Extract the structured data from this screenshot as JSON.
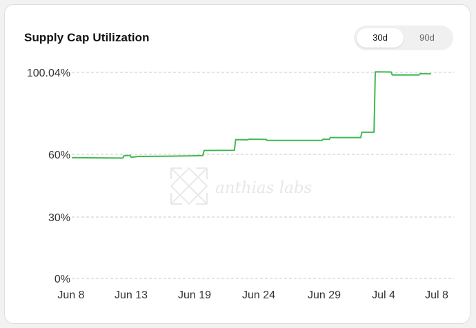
{
  "card": {
    "title": "Supply Cap Utilization"
  },
  "toggle": {
    "options": [
      "30d",
      "90d"
    ],
    "selected": "30d"
  },
  "watermark": {
    "text": "anthias labs"
  },
  "colors": {
    "line": "#3fb950",
    "grid": "#c8c8c8",
    "toggle_bg": "#f0f0f1"
  },
  "chart_data": {
    "type": "line",
    "title": "Supply Cap Utilization",
    "xlabel": "",
    "ylabel": "",
    "x_ticks": [
      "Jun 8",
      "Jun 13",
      "Jun 19",
      "Jun 24",
      "Jun 29",
      "Jul 4",
      "Jul 8"
    ],
    "y_ticks": [
      "0%",
      "30%",
      "60%",
      "100.04%"
    ],
    "ylim": [
      0,
      100.04
    ],
    "xlim": [
      0,
      30
    ],
    "grid": true,
    "series": [
      {
        "points": [
          [
            0,
            58.4
          ],
          [
            4.2,
            58.2
          ],
          [
            4.3,
            59.3
          ],
          [
            4.8,
            59.5
          ],
          [
            4.9,
            58.6
          ],
          [
            5.5,
            59.0
          ],
          [
            7.5,
            59.1
          ],
          [
            10.0,
            59.3
          ],
          [
            10.8,
            59.4
          ],
          [
            10.9,
            61.9
          ],
          [
            13.4,
            62.0
          ],
          [
            13.5,
            67.2
          ],
          [
            14.5,
            67.1
          ],
          [
            14.6,
            67.4
          ],
          [
            16.0,
            67.3
          ],
          [
            16.1,
            66.8
          ],
          [
            20.6,
            66.8
          ],
          [
            20.7,
            67.4
          ],
          [
            21.2,
            67.3
          ],
          [
            21.3,
            68.2
          ],
          [
            23.8,
            68.2
          ],
          [
            23.9,
            70.8
          ],
          [
            24.9,
            70.8
          ],
          [
            25.0,
            100.3
          ],
          [
            26.3,
            100.2
          ],
          [
            26.4,
            98.8
          ],
          [
            28.6,
            98.8
          ],
          [
            28.7,
            99.4
          ],
          [
            29.6,
            99.3
          ]
        ]
      }
    ]
  }
}
